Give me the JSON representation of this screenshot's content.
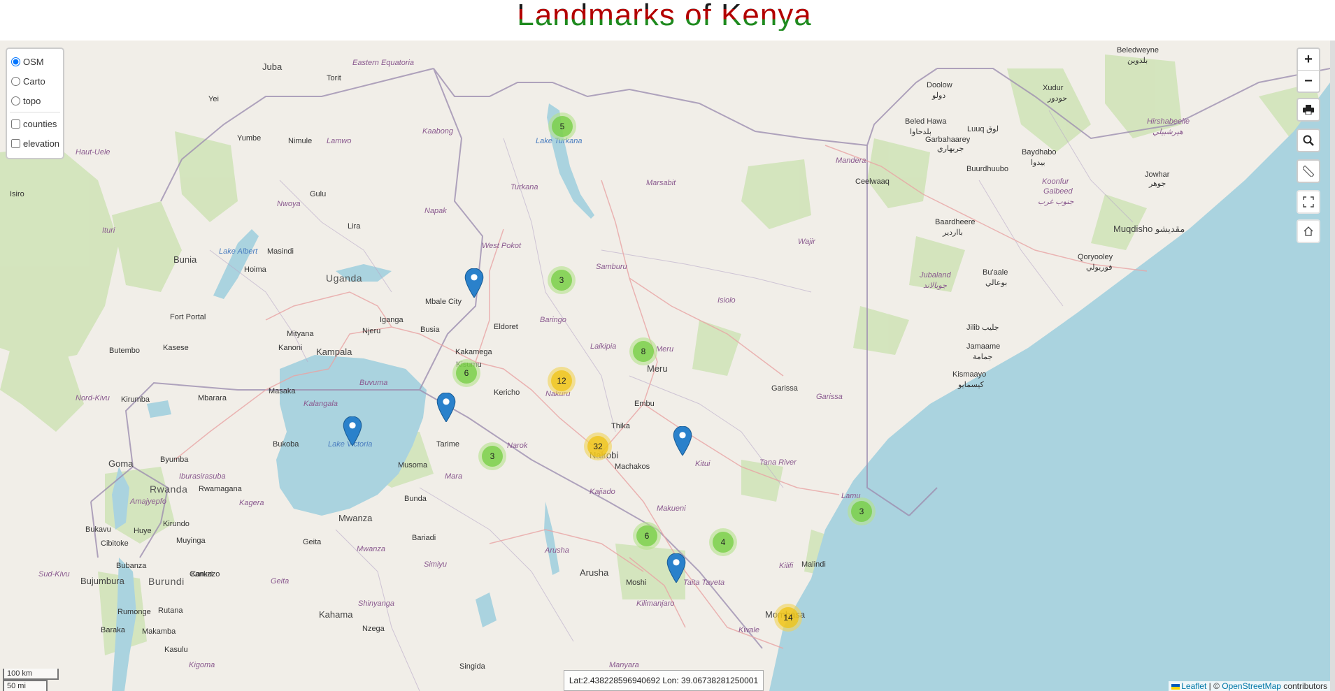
{
  "title": "Landmarks of Kenya",
  "layers": {
    "base": [
      "OSM",
      "Carto",
      "topo"
    ],
    "selected": "OSM",
    "overlays": [
      "counties",
      "elevation"
    ]
  },
  "controls": {
    "zoom_in": "+",
    "zoom_out": "−"
  },
  "scale": {
    "km": "100 km",
    "mi": "50 mi"
  },
  "coords": "Lat:2.438228596940692 Lon: 39.06738281250001",
  "attribution": {
    "leaflet": "Leaflet",
    "sep": " | © ",
    "osm": "OpenStreetMap",
    "tail": " contributors"
  },
  "clusters": [
    "5",
    "3",
    "8",
    "6",
    "12",
    "32",
    "3",
    "6",
    "4",
    "3",
    "14"
  ],
  "places": {
    "juba": "Juba",
    "eastern_equatoria": "Eastern Equatoria",
    "torit": "Torit",
    "yei": "Yei",
    "kaboong": "Kaabong",
    "yumbe": "Yumbe",
    "nimule": "Nimule",
    "lamwo": "Lamwo",
    "haut_uele": "Haut-Uele",
    "nwoya": "Nwoya",
    "gulu": "Gulu",
    "lira": "Lira",
    "napak": "Napak",
    "turkana": "Turkana",
    "lake_turkana": "Lake Turkana",
    "marsabit": "Marsabit",
    "iriso": "Isiro",
    "ituri": "Ituri",
    "bunia": "Bunia",
    "lake_albert": "Lake Albert",
    "hoima": "Hoima",
    "masindi": "Masindi",
    "uganda": "Uganda",
    "west_pokot": "West Pokot",
    "samburu": "Samburu",
    "wajir": "Wajir",
    "mandera": "Mandera",
    "mbale": "Mbale City",
    "eldoret": "Eldoret",
    "baringo": "Baringo",
    "isiolo": "Isiolo",
    "fort_portal": "Fort Portal",
    "mityana": "Mityana",
    "njeru": "Njeru",
    "iganga": "Iganga",
    "busia": "Busia",
    "butembo": "Butembo",
    "kasese": "Kasese",
    "kanoni": "Kanoni",
    "kampala": "Kampala",
    "kakamega": "Kakamega",
    "laikipia": "Laikipia",
    "meru_county": "Meru",
    "meru": "Meru",
    "buvuma": "Buvuma",
    "kisumu": "Kisumu",
    "nakuru": "Nakuru",
    "kericho": "Kericho",
    "garissa_town": "Garissa",
    "garissa": "Garissa",
    "nord_kivu": "Nord-Kivu",
    "kirumba": "Kirumba",
    "masaka": "Masaka",
    "mbarara": "Mbarara",
    "kalangala": "Kalangala",
    "embu": "Embu",
    "thika": "Thika",
    "bukoba": "Bukoba",
    "lake_victoria": "Lake Victoria",
    "tarime": "Tarime",
    "narok": "Narok",
    "nairobi": "Nairobi",
    "kitui": "Kitui",
    "machakos": "Machakos",
    "tana_river": "Tana River",
    "goma": "Goma",
    "byumba": "Byumba",
    "musoma": "Musoma",
    "ibu": "Iburasirasuba",
    "rwanda": "Rwanda",
    "rwamagana": "Rwamagana",
    "amajyepfo": "Amajyepfo",
    "kagera": "Kagera",
    "bunda": "Bunda",
    "mara": "Mara",
    "kajiado": "Kajiado",
    "makueni": "Makueni",
    "lamu": "Lamu",
    "bukavu": "Bukavu",
    "huye": "Huye",
    "kirundo": "Kirundo",
    "cibitoke": "Cibitoke",
    "muyinga": "Muyinga",
    "mwanza": "Mwanza",
    "geita_town": "Geita",
    "bariadi": "Bariadi",
    "mwanza_reg": "Mwanza",
    "arusha_reg": "Arusha",
    "kilifi": "Kilifi",
    "malindi": "Malindi",
    "sud_kivu": "Sud-Kivu",
    "bubanza": "Bubanza",
    "karuzi": "Karuzi",
    "bujumbura": "Bujumbura",
    "burundi": "Burundi",
    "cankuzo": "Cankuzo",
    "simiyu": "Simiyu",
    "arusha": "Arusha",
    "moshi": "Moshi",
    "taita": "Taita Taveta",
    "geita": "Geita",
    "rumonge": "Rumonge",
    "rutana": "Rutana",
    "kilimanjaro": "Kilimanjaro",
    "mombasa": "Mombasa",
    "kahama": "Kahama",
    "shinyanga": "Shinyanga",
    "kwale": "Kwale",
    "baraka": "Baraka",
    "makamba": "Makamba",
    "nzega": "Nzega",
    "kasulu": "Kasulu",
    "kigoma": "Kigoma",
    "singida": "Singida",
    "manyara": "Manyara",
    "doolow": "Doolow",
    "doolow_ar": "دولو",
    "beledweyne": "Beledweyne",
    "beled_ar": "بلدوين",
    "xudur": "Xudur",
    "xudur_ar": "حودور",
    "beled_hawa": "Beled Hawa",
    "bh_ar": "بلدحاوا",
    "luuq": "Luuq لوق",
    "garbaharey": "Garbahaarey",
    "gh_ar": "جربهاري",
    "hirshabelle": "Hirshabeelle",
    "hirsh_ar": "هيرشبيلي",
    "baydhabo": "Baydhabo",
    "bay_ar": "بيدوا",
    "buurdhuubo": "Buurdhuubo",
    "ceelwaaq": "Ceelwaaq",
    "koonfur": "Koonfur",
    "galbeed": "Galbeed",
    "kg_ar": "جنوب غرب",
    "jowhar": "Jowhar",
    "jow_ar": "جوهر",
    "muqdisho": "Muqdisho مقديشو",
    "baardheere": "Baardheere",
    "bd_ar": "بااردير",
    "jubaland": "Jubaland",
    "jl_ar": "جوبالاند",
    "buaale": "Bu'aale",
    "bua_ar": "بوعالي",
    "qoryooley": "Qoryooley",
    "qor_ar": "قوريولي",
    "jilib": "Jilib جليب",
    "jamaame": "Jamaame",
    "jam_ar": "جمامة",
    "kismaayo": "Kismaayo",
    "kis_ar": "كيسمايو"
  },
  "colors": {
    "land": "#f1eee8",
    "water": "#aad3df",
    "park": "#c8dfb0",
    "border": "#9e8fb0",
    "road": "#e9a4a4"
  }
}
